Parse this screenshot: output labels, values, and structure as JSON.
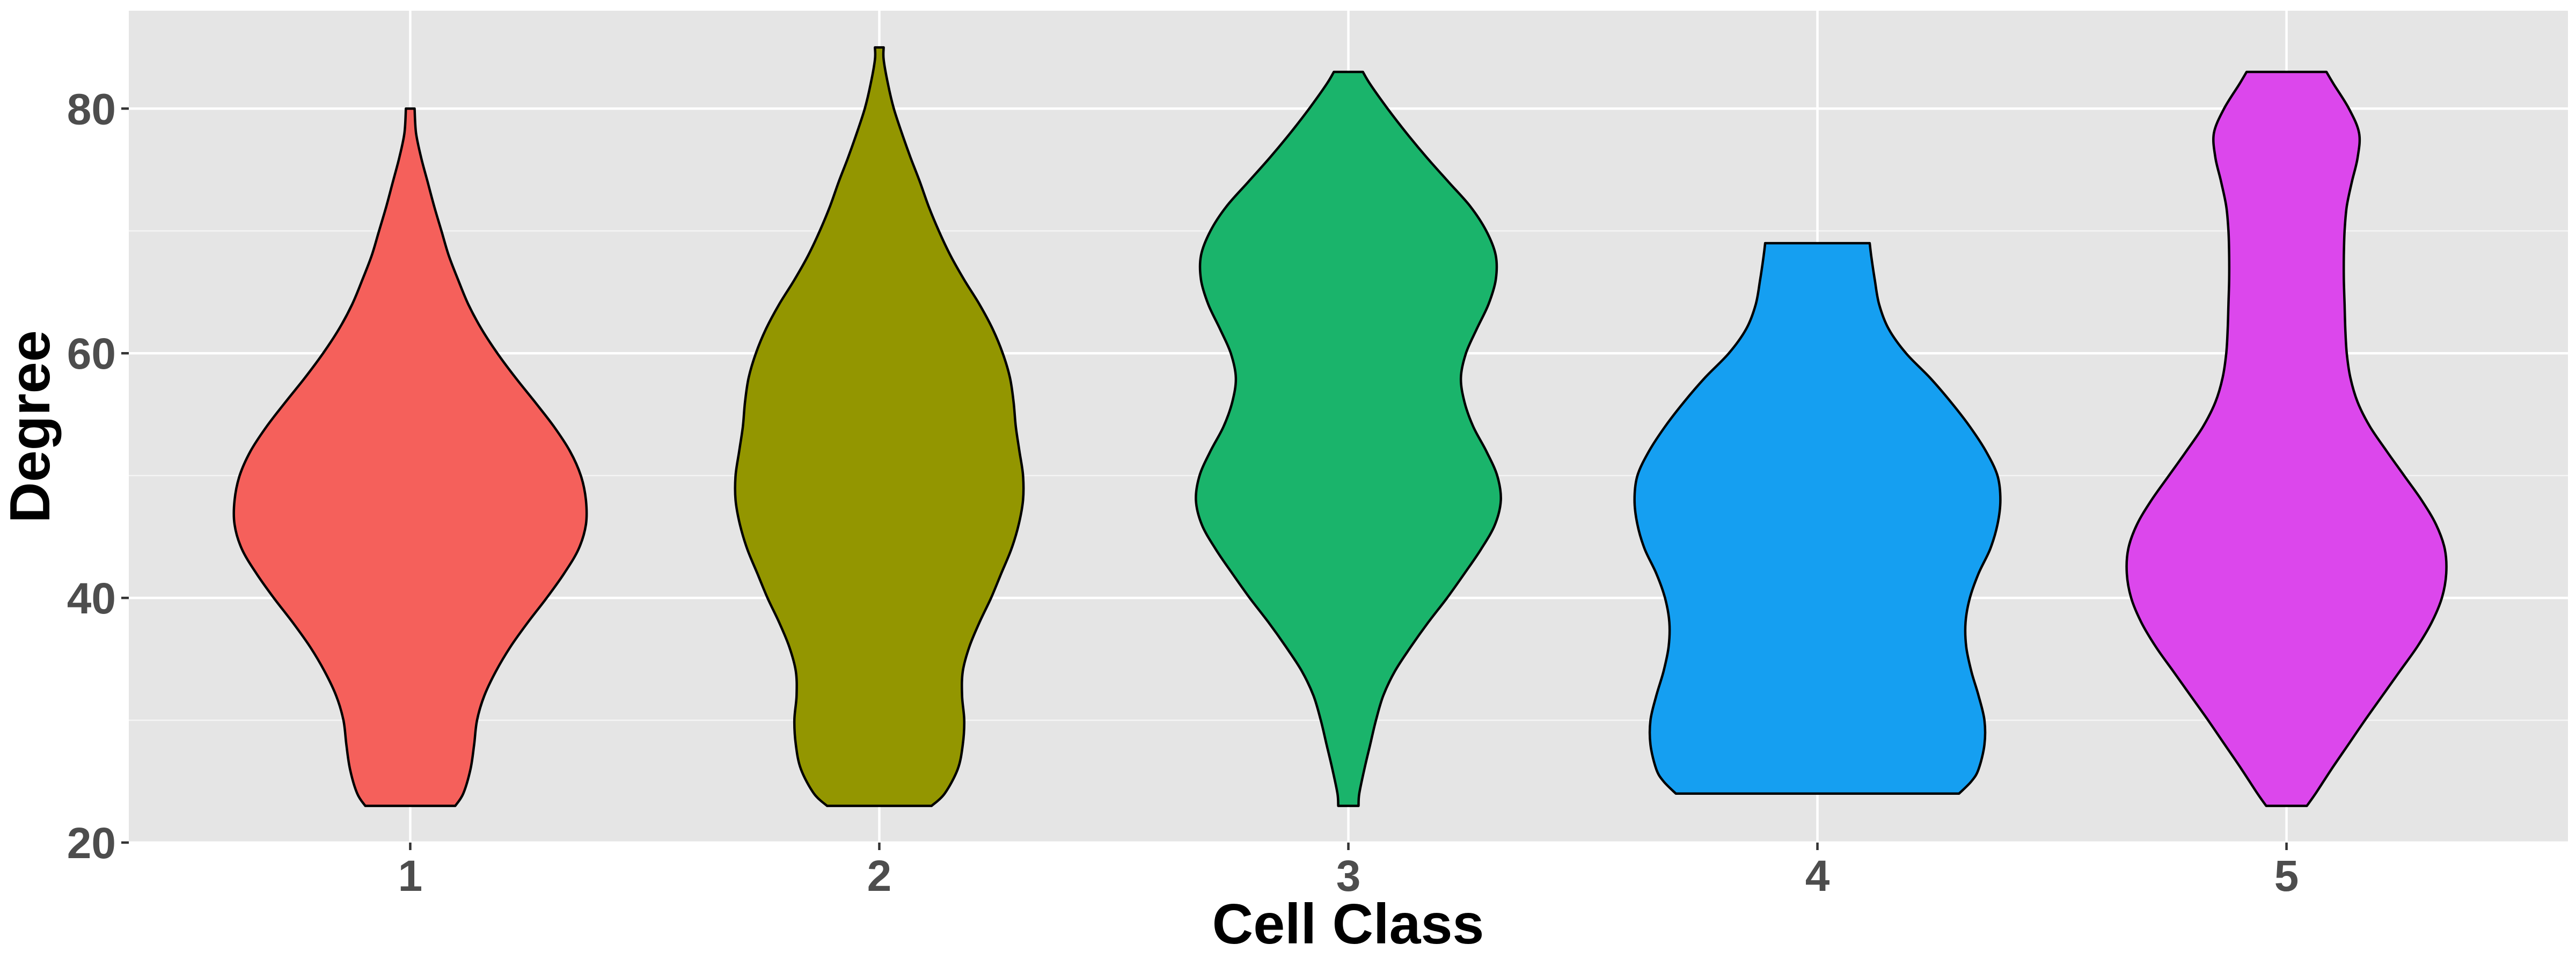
{
  "chart_data": {
    "type": "violin",
    "title": "",
    "xlabel": "Cell Class",
    "ylabel": "Degree",
    "categories": [
      "1",
      "2",
      "3",
      "4",
      "5"
    ],
    "ylim": [
      20,
      88
    ],
    "yticks": [
      20,
      40,
      60,
      80
    ],
    "grid": true,
    "legend": "none",
    "colors": {
      "panel": "#e5e5e5",
      "grid": "#ffffff",
      "outline": "#000000"
    },
    "series": [
      {
        "category": "1",
        "color": "#f5605b",
        "min": 23,
        "max": 80,
        "density": [
          [
            23,
            0.62
          ],
          [
            24,
            0.73
          ],
          [
            26,
            0.83
          ],
          [
            28,
            0.88
          ],
          [
            30,
            0.92
          ],
          [
            32,
            1.02
          ],
          [
            34,
            1.18
          ],
          [
            36,
            1.38
          ],
          [
            38,
            1.62
          ],
          [
            40,
            1.88
          ],
          [
            42,
            2.12
          ],
          [
            44,
            2.32
          ],
          [
            46,
            2.42
          ],
          [
            48,
            2.42
          ],
          [
            50,
            2.35
          ],
          [
            52,
            2.2
          ],
          [
            54,
            1.98
          ],
          [
            56,
            1.72
          ],
          [
            58,
            1.45
          ],
          [
            60,
            1.2
          ],
          [
            62,
            0.98
          ],
          [
            64,
            0.8
          ],
          [
            66,
            0.66
          ],
          [
            68,
            0.53
          ],
          [
            70,
            0.43
          ],
          [
            72,
            0.33
          ],
          [
            74,
            0.24
          ],
          [
            76,
            0.15
          ],
          [
            78,
            0.08
          ],
          [
            80,
            0.06
          ]
        ]
      },
      {
        "category": "2",
        "color": "#939600",
        "min": 23,
        "max": 85,
        "density": [
          [
            23,
            0.72
          ],
          [
            24,
            0.9
          ],
          [
            26,
            1.08
          ],
          [
            28,
            1.15
          ],
          [
            30,
            1.17
          ],
          [
            32,
            1.14
          ],
          [
            34,
            1.15
          ],
          [
            36,
            1.24
          ],
          [
            38,
            1.38
          ],
          [
            40,
            1.54
          ],
          [
            42,
            1.68
          ],
          [
            44,
            1.82
          ],
          [
            46,
            1.92
          ],
          [
            48,
            1.98
          ],
          [
            50,
            1.98
          ],
          [
            52,
            1.93
          ],
          [
            54,
            1.88
          ],
          [
            56,
            1.85
          ],
          [
            58,
            1.8
          ],
          [
            60,
            1.7
          ],
          [
            62,
            1.56
          ],
          [
            64,
            1.38
          ],
          [
            66,
            1.17
          ],
          [
            68,
            0.98
          ],
          [
            70,
            0.82
          ],
          [
            72,
            0.68
          ],
          [
            74,
            0.56
          ],
          [
            76,
            0.43
          ],
          [
            78,
            0.31
          ],
          [
            80,
            0.2
          ],
          [
            82,
            0.12
          ],
          [
            84,
            0.06
          ],
          [
            85,
            0.06
          ]
        ]
      },
      {
        "category": "3",
        "color": "#1ab46b",
        "min": 23,
        "max": 83,
        "density": [
          [
            23,
            0.14
          ],
          [
            24,
            0.15
          ],
          [
            26,
            0.22
          ],
          [
            28,
            0.3
          ],
          [
            30,
            0.38
          ],
          [
            32,
            0.48
          ],
          [
            34,
            0.64
          ],
          [
            36,
            0.86
          ],
          [
            38,
            1.1
          ],
          [
            40,
            1.36
          ],
          [
            42,
            1.6
          ],
          [
            44,
            1.83
          ],
          [
            46,
            2.02
          ],
          [
            48,
            2.1
          ],
          [
            50,
            2.05
          ],
          [
            52,
            1.9
          ],
          [
            54,
            1.72
          ],
          [
            56,
            1.6
          ],
          [
            58,
            1.55
          ],
          [
            60,
            1.62
          ],
          [
            62,
            1.77
          ],
          [
            64,
            1.93
          ],
          [
            66,
            2.03
          ],
          [
            68,
            2.03
          ],
          [
            70,
            1.9
          ],
          [
            72,
            1.68
          ],
          [
            74,
            1.38
          ],
          [
            76,
            1.08
          ],
          [
            78,
            0.8
          ],
          [
            80,
            0.54
          ],
          [
            82,
            0.3
          ],
          [
            83,
            0.2
          ]
        ]
      },
      {
        "category": "4",
        "color": "#159ff1",
        "min": 24,
        "max": 69,
        "density": [
          [
            24,
            1.95
          ],
          [
            25,
            2.12
          ],
          [
            26,
            2.22
          ],
          [
            28,
            2.3
          ],
          [
            30,
            2.3
          ],
          [
            32,
            2.22
          ],
          [
            34,
            2.12
          ],
          [
            36,
            2.05
          ],
          [
            38,
            2.04
          ],
          [
            40,
            2.1
          ],
          [
            42,
            2.22
          ],
          [
            44,
            2.38
          ],
          [
            46,
            2.48
          ],
          [
            48,
            2.52
          ],
          [
            50,
            2.48
          ],
          [
            52,
            2.32
          ],
          [
            54,
            2.1
          ],
          [
            56,
            1.84
          ],
          [
            58,
            1.55
          ],
          [
            60,
            1.22
          ],
          [
            62,
            0.98
          ],
          [
            64,
            0.85
          ],
          [
            66,
            0.79
          ],
          [
            68,
            0.74
          ],
          [
            69,
            0.72
          ]
        ]
      },
      {
        "category": "5",
        "color": "#dc47ec",
        "min": 23,
        "max": 83,
        "density": [
          [
            23,
            0.28
          ],
          [
            24,
            0.4
          ],
          [
            26,
            0.62
          ],
          [
            28,
            0.85
          ],
          [
            30,
            1.08
          ],
          [
            32,
            1.32
          ],
          [
            34,
            1.56
          ],
          [
            36,
            1.8
          ],
          [
            38,
            2.0
          ],
          [
            40,
            2.14
          ],
          [
            42,
            2.2
          ],
          [
            44,
            2.18
          ],
          [
            46,
            2.06
          ],
          [
            48,
            1.86
          ],
          [
            50,
            1.62
          ],
          [
            52,
            1.38
          ],
          [
            54,
            1.15
          ],
          [
            56,
            0.98
          ],
          [
            58,
            0.88
          ],
          [
            60,
            0.83
          ],
          [
            62,
            0.81
          ],
          [
            64,
            0.8
          ],
          [
            66,
            0.79
          ],
          [
            68,
            0.79
          ],
          [
            70,
            0.8
          ],
          [
            72,
            0.83
          ],
          [
            74,
            0.9
          ],
          [
            76,
            0.98
          ],
          [
            78,
            1.0
          ],
          [
            80,
            0.86
          ],
          [
            82,
            0.65
          ],
          [
            83,
            0.55
          ]
        ]
      }
    ]
  }
}
